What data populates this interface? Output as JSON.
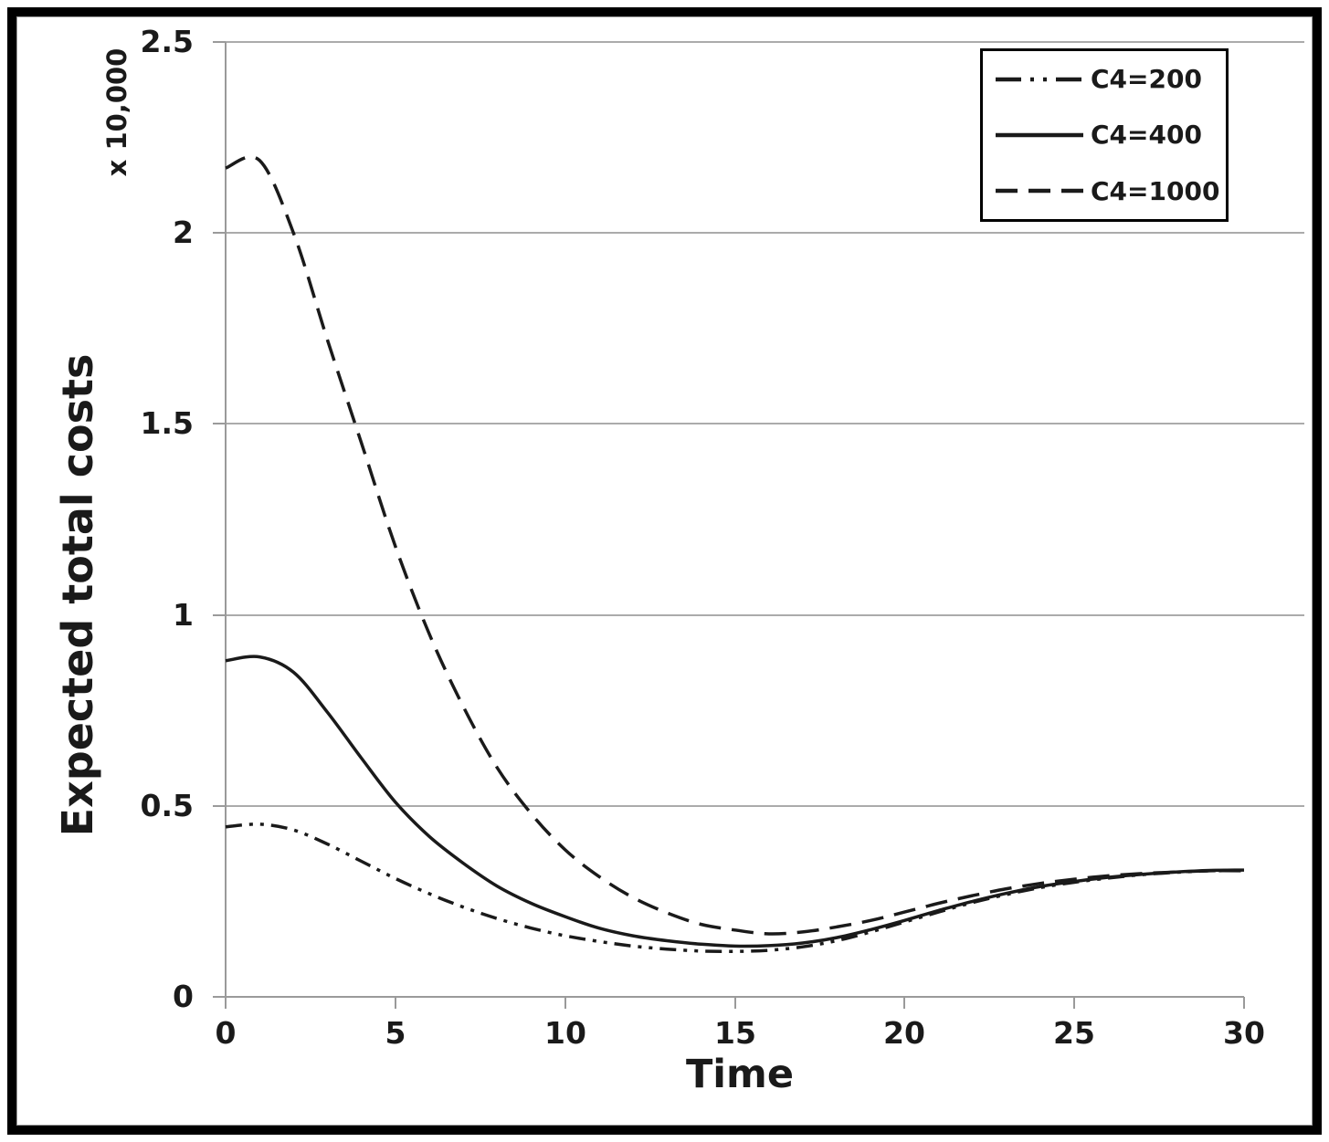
{
  "chart_data": {
    "type": "line",
    "title": "",
    "xlabel": "Time",
    "ylabel": "Expected total costs",
    "y_unit_note": "x 10,000",
    "xlim": [
      0,
      30
    ],
    "ylim": [
      0,
      2.5
    ],
    "x_ticks": [
      0,
      5,
      10,
      15,
      20,
      25,
      30
    ],
    "x_tick_labels": [
      "0",
      "5",
      "10",
      "15",
      "20",
      "25",
      "30"
    ],
    "y_ticks": [
      0,
      0.5,
      1,
      1.5,
      2,
      2.5
    ],
    "y_tick_labels": [
      "0",
      "0.5",
      "1",
      "1.5",
      "2",
      "2.5"
    ],
    "grid": true,
    "legend_position": "top-right",
    "x": [
      0,
      1,
      2,
      3,
      4,
      5,
      6,
      7,
      8,
      9,
      10,
      11,
      12,
      13,
      14,
      15,
      16,
      17,
      18,
      19,
      20,
      21,
      22,
      23,
      24,
      25,
      26,
      27,
      28,
      29,
      30
    ],
    "series": [
      {
        "name": "C4=200",
        "style": "dash-dot-dot",
        "values": [
          0.445,
          0.452,
          0.437,
          0.4,
          0.355,
          0.31,
          0.27,
          0.235,
          0.205,
          0.18,
          0.16,
          0.145,
          0.133,
          0.125,
          0.12,
          0.119,
          0.122,
          0.131,
          0.147,
          0.17,
          0.196,
          0.222,
          0.247,
          0.268,
          0.286,
          0.3,
          0.311,
          0.32,
          0.326,
          0.33,
          0.332
        ]
      },
      {
        "name": "C4=400",
        "style": "solid",
        "values": [
          0.88,
          0.89,
          0.85,
          0.745,
          0.625,
          0.51,
          0.42,
          0.35,
          0.29,
          0.245,
          0.21,
          0.18,
          0.16,
          0.147,
          0.138,
          0.133,
          0.134,
          0.141,
          0.155,
          0.176,
          0.2,
          0.226,
          0.25,
          0.271,
          0.289,
          0.302,
          0.313,
          0.321,
          0.327,
          0.331,
          0.332
        ]
      },
      {
        "name": "C4=1000",
        "style": "dashed",
        "values": [
          2.17,
          2.19,
          2.0,
          1.72,
          1.45,
          1.18,
          0.95,
          0.76,
          0.6,
          0.48,
          0.385,
          0.315,
          0.26,
          0.22,
          0.19,
          0.175,
          0.165,
          0.17,
          0.183,
          0.2,
          0.222,
          0.245,
          0.265,
          0.283,
          0.297,
          0.308,
          0.317,
          0.323,
          0.327,
          0.33,
          0.33
        ]
      }
    ],
    "colors": {
      "line": "#1a1a1a",
      "grid": "#ababab",
      "axis": "#9a9a9a",
      "text": "#1a1a1a",
      "frame": "#000000",
      "background": "#ffffff"
    }
  }
}
